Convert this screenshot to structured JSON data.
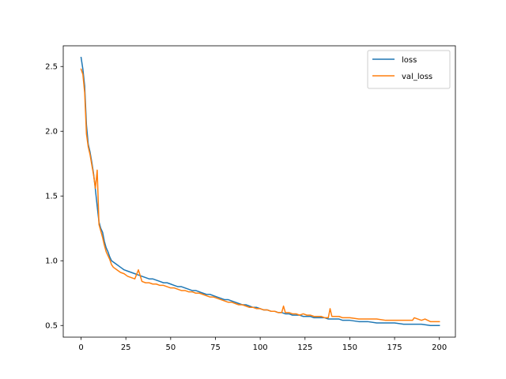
{
  "chart_data": {
    "type": "line",
    "title": "",
    "xlabel": "",
    "ylabel": "",
    "xlim": [
      -9.95,
      208.95
    ],
    "ylim": [
      0.41,
      2.66
    ],
    "x_ticks": [
      0,
      25,
      50,
      75,
      100,
      125,
      150,
      175,
      200
    ],
    "y_ticks": [
      0.5,
      1.0,
      1.5,
      2.0,
      2.5
    ],
    "x_tick_labels": [
      "0",
      "25",
      "50",
      "75",
      "100",
      "125",
      "150",
      "175",
      "200"
    ],
    "y_tick_labels": [
      "0.5",
      "1.0",
      "1.5",
      "2.0",
      "2.5"
    ],
    "grid": false,
    "legend_position": "upper right",
    "series": [
      {
        "name": "loss",
        "color": "#1f77b4",
        "x": [
          0,
          1,
          2,
          3,
          4,
          5,
          6,
          7,
          8,
          9,
          10,
          11,
          12,
          13,
          14,
          15,
          16,
          17,
          18,
          20,
          22,
          24,
          26,
          28,
          30,
          32,
          34,
          36,
          38,
          40,
          42,
          44,
          46,
          48,
          50,
          52,
          54,
          56,
          58,
          60,
          62,
          64,
          66,
          68,
          70,
          72,
          74,
          76,
          78,
          80,
          82,
          84,
          86,
          88,
          90,
          92,
          94,
          96,
          98,
          100,
          102,
          104,
          106,
          108,
          110,
          112,
          114,
          116,
          118,
          120,
          122,
          124,
          126,
          128,
          130,
          132,
          134,
          136,
          138,
          140,
          142,
          144,
          146,
          148,
          150,
          155,
          160,
          165,
          170,
          175,
          180,
          185,
          190,
          195,
          200
        ],
        "values": [
          2.57,
          2.48,
          2.35,
          2.05,
          1.9,
          1.84,
          1.76,
          1.67,
          1.55,
          1.42,
          1.3,
          1.25,
          1.22,
          1.15,
          1.1,
          1.07,
          1.03,
          1.0,
          0.99,
          0.97,
          0.95,
          0.93,
          0.92,
          0.91,
          0.9,
          0.89,
          0.88,
          0.87,
          0.86,
          0.86,
          0.85,
          0.84,
          0.83,
          0.83,
          0.82,
          0.81,
          0.8,
          0.8,
          0.79,
          0.78,
          0.77,
          0.77,
          0.76,
          0.75,
          0.74,
          0.74,
          0.73,
          0.72,
          0.71,
          0.7,
          0.7,
          0.69,
          0.68,
          0.67,
          0.66,
          0.66,
          0.65,
          0.64,
          0.64,
          0.63,
          0.62,
          0.62,
          0.61,
          0.61,
          0.6,
          0.6,
          0.59,
          0.59,
          0.58,
          0.58,
          0.58,
          0.57,
          0.57,
          0.57,
          0.56,
          0.56,
          0.56,
          0.56,
          0.55,
          0.55,
          0.55,
          0.55,
          0.54,
          0.54,
          0.54,
          0.53,
          0.53,
          0.52,
          0.52,
          0.52,
          0.51,
          0.51,
          0.51,
          0.5,
          0.5
        ]
      },
      {
        "name": "val_loss",
        "color": "#ff7f0e",
        "x": [
          0,
          1,
          2,
          3,
          4,
          5,
          6,
          7,
          8,
          9,
          10,
          11,
          12,
          13,
          14,
          15,
          16,
          17,
          18,
          20,
          22,
          24,
          26,
          28,
          30,
          32,
          34,
          36,
          38,
          40,
          42,
          44,
          46,
          48,
          50,
          52,
          54,
          56,
          58,
          60,
          62,
          64,
          66,
          68,
          70,
          72,
          74,
          76,
          78,
          80,
          82,
          84,
          86,
          88,
          90,
          92,
          94,
          96,
          98,
          100,
          102,
          104,
          106,
          108,
          110,
          112,
          113,
          114,
          116,
          118,
          120,
          122,
          124,
          126,
          128,
          130,
          132,
          134,
          136,
          138,
          139,
          140,
          142,
          144,
          146,
          148,
          150,
          155,
          160,
          165,
          170,
          175,
          180,
          185,
          186,
          190,
          192,
          195,
          200
        ],
        "values": [
          2.48,
          2.44,
          2.3,
          1.98,
          1.88,
          1.82,
          1.74,
          1.66,
          1.56,
          1.7,
          1.28,
          1.23,
          1.18,
          1.12,
          1.07,
          1.04,
          1.01,
          0.97,
          0.95,
          0.93,
          0.91,
          0.9,
          0.88,
          0.87,
          0.86,
          0.93,
          0.84,
          0.83,
          0.83,
          0.82,
          0.82,
          0.81,
          0.81,
          0.8,
          0.79,
          0.79,
          0.78,
          0.77,
          0.77,
          0.76,
          0.76,
          0.75,
          0.75,
          0.74,
          0.73,
          0.72,
          0.72,
          0.71,
          0.7,
          0.69,
          0.68,
          0.68,
          0.67,
          0.66,
          0.66,
          0.65,
          0.64,
          0.64,
          0.63,
          0.63,
          0.62,
          0.62,
          0.61,
          0.61,
          0.6,
          0.6,
          0.65,
          0.6,
          0.6,
          0.59,
          0.59,
          0.58,
          0.59,
          0.58,
          0.58,
          0.57,
          0.57,
          0.57,
          0.56,
          0.56,
          0.63,
          0.57,
          0.57,
          0.57,
          0.56,
          0.56,
          0.56,
          0.55,
          0.55,
          0.55,
          0.54,
          0.54,
          0.54,
          0.54,
          0.56,
          0.54,
          0.55,
          0.53,
          0.53
        ]
      }
    ]
  }
}
